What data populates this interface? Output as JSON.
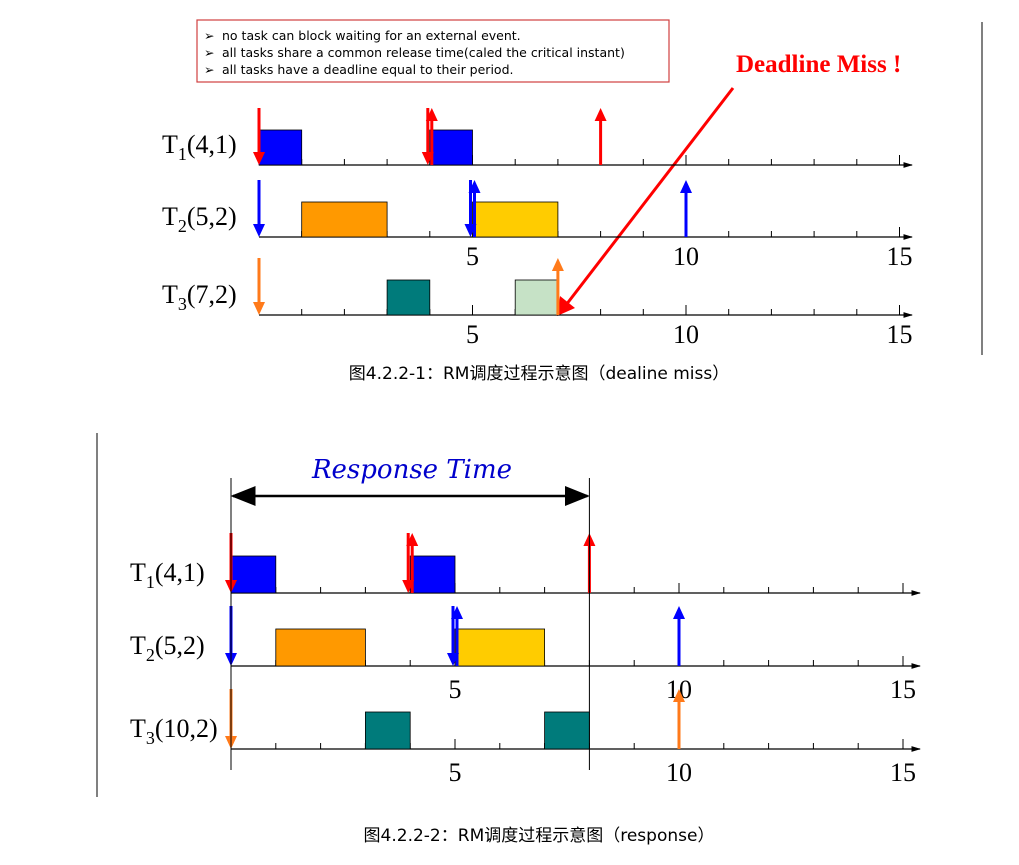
{
  "colors": {
    "t1": "#0000ff",
    "t2_first": "#ff9900",
    "t2_second": "#ffcc00",
    "t3": "#007b7b",
    "t3_missed": "#c6e2c6",
    "arrow_red": "#ff0000",
    "arrow_blue": "#0000ff",
    "arrow_orange": "#ff7a1a",
    "deadline_text": "#ff0000",
    "response_text": "#0000cc",
    "box_border": "#d04040"
  },
  "notes": {
    "items": [
      "no task can block waiting for an external event.",
      "all tasks share a common release time(caled the critical instant)",
      "all tasks have a deadline equal to their period."
    ]
  },
  "deadline_miss_label": "Deadline Miss !",
  "response_time_label": "Response Time",
  "figure1": {
    "caption": "图4.2.2-1：RM调度过程示意图（dealine miss）",
    "tasks": [
      {
        "key": "t1",
        "name": "T",
        "sub": "1",
        "params": "(4,1)"
      },
      {
        "key": "t2",
        "name": "T",
        "sub": "2",
        "params": "(5,2)"
      },
      {
        "key": "t3",
        "name": "T",
        "sub": "3",
        "params": "(7,2)"
      }
    ],
    "tick_labels": [
      "5",
      "10",
      "15"
    ],
    "jobs": [
      {
        "task": "t1",
        "start": 0,
        "end": 1,
        "color": "t1"
      },
      {
        "task": "t1",
        "start": 4,
        "end": 5,
        "color": "t1"
      },
      {
        "task": "t2",
        "start": 1,
        "end": 3,
        "color": "t2_first"
      },
      {
        "task": "t2",
        "start": 5,
        "end": 7,
        "color": "t2_second"
      },
      {
        "task": "t3",
        "start": 3,
        "end": 4,
        "color": "t3"
      },
      {
        "task": "t3",
        "start": 6,
        "end": 7,
        "color": "t3_missed"
      }
    ],
    "release_arrows": [
      {
        "task": "t1",
        "time": 0,
        "dir": "down",
        "color": "arrow_red"
      },
      {
        "task": "t1",
        "time": 4,
        "dir": "both",
        "color": "arrow_red"
      },
      {
        "task": "t1",
        "time": 8,
        "dir": "up",
        "color": "arrow_red"
      },
      {
        "task": "t2",
        "time": 0,
        "dir": "down",
        "color": "arrow_blue"
      },
      {
        "task": "t2",
        "time": 5,
        "dir": "both",
        "color": "arrow_blue"
      },
      {
        "task": "t2",
        "time": 10,
        "dir": "up",
        "color": "arrow_blue"
      },
      {
        "task": "t3",
        "time": 0,
        "dir": "down",
        "color": "arrow_orange"
      },
      {
        "task": "t3",
        "time": 7,
        "dir": "up",
        "color": "arrow_orange"
      }
    ]
  },
  "figure2": {
    "caption": "图4.2.2-2：RM调度过程示意图（response）",
    "tasks": [
      {
        "key": "t1",
        "name": "T",
        "sub": "1",
        "params": "(4,1)"
      },
      {
        "key": "t2",
        "name": "T",
        "sub": "2",
        "params": "(5,2)"
      },
      {
        "key": "t3",
        "name": "T",
        "sub": "3",
        "params": "(10,2)"
      }
    ],
    "tick_labels": [
      "5",
      "10",
      "15"
    ],
    "jobs": [
      {
        "task": "t1",
        "start": 0,
        "end": 1,
        "color": "t1"
      },
      {
        "task": "t1",
        "start": 4,
        "end": 5,
        "color": "t1"
      },
      {
        "task": "t2",
        "start": 1,
        "end": 3,
        "color": "t2_first"
      },
      {
        "task": "t2",
        "start": 5,
        "end": 7,
        "color": "t2_second"
      },
      {
        "task": "t3",
        "start": 3,
        "end": 4,
        "color": "t3"
      },
      {
        "task": "t3",
        "start": 7,
        "end": 8,
        "color": "t3"
      }
    ],
    "release_arrows": [
      {
        "task": "t1",
        "time": 0,
        "dir": "down",
        "color": "arrow_red"
      },
      {
        "task": "t1",
        "time": 4,
        "dir": "both",
        "color": "arrow_red"
      },
      {
        "task": "t1",
        "time": 8,
        "dir": "up",
        "color": "arrow_red"
      },
      {
        "task": "t2",
        "time": 0,
        "dir": "down",
        "color": "arrow_blue"
      },
      {
        "task": "t2",
        "time": 5,
        "dir": "both",
        "color": "arrow_blue"
      },
      {
        "task": "t2",
        "time": 10,
        "dir": "up",
        "color": "arrow_blue"
      },
      {
        "task": "t3",
        "time": 0,
        "dir": "down",
        "color": "arrow_orange"
      },
      {
        "task": "t3",
        "time": 10,
        "dir": "up",
        "color": "arrow_orange"
      }
    ],
    "response_time": {
      "start": 0,
      "end": 8
    }
  }
}
